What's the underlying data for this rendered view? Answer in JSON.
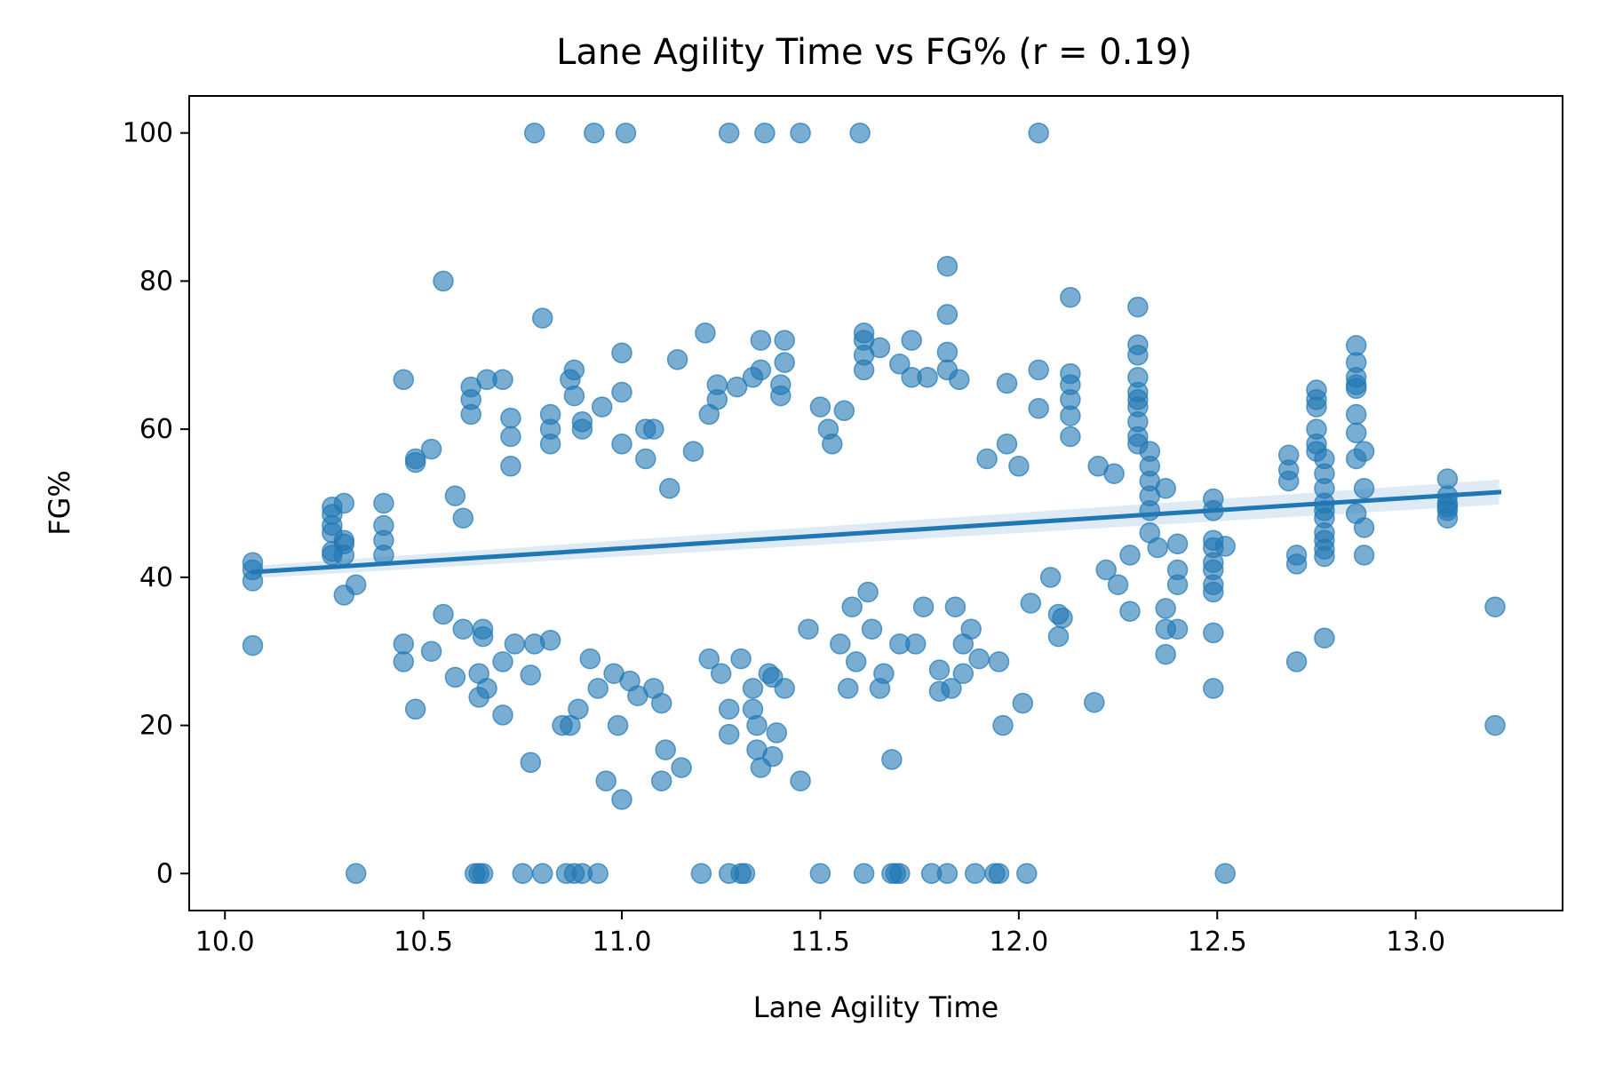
{
  "chart_data": {
    "type": "scatter",
    "title": "Lane Agility Time vs FG% (r = 0.19)",
    "xlabel": "Lane Agility Time",
    "ylabel": "FG%",
    "xlim": [
      9.91,
      13.37
    ],
    "ylim": [
      -5,
      105
    ],
    "xticks": [
      10.0,
      10.5,
      11.0,
      11.5,
      12.0,
      12.5,
      13.0
    ],
    "xtick_labels": [
      "10.0",
      "10.5",
      "11.0",
      "11.5",
      "12.0",
      "12.5",
      "13.0"
    ],
    "yticks": [
      0,
      20,
      40,
      60,
      80,
      100
    ],
    "ytick_labels": [
      "0",
      "20",
      "40",
      "60",
      "80",
      "100"
    ],
    "grid": false,
    "legend": "none",
    "point_color": "#1f77b4",
    "regression": {
      "x": [
        10.07,
        13.21
      ],
      "y": [
        40.7,
        51.5
      ]
    },
    "points": [
      [
        10.07,
        42.0
      ],
      [
        10.07,
        41.0
      ],
      [
        10.07,
        39.5
      ],
      [
        10.07,
        30.8
      ],
      [
        10.27,
        49.5
      ],
      [
        10.27,
        48.5
      ],
      [
        10.27,
        47.0
      ],
      [
        10.27,
        46.0
      ],
      [
        10.27,
        43.5
      ],
      [
        10.27,
        43.0
      ],
      [
        10.3,
        50.0
      ],
      [
        10.3,
        45.0
      ],
      [
        10.3,
        44.5
      ],
      [
        10.3,
        43.0
      ],
      [
        10.3,
        37.6
      ],
      [
        10.33,
        39.0
      ],
      [
        10.33,
        0.0
      ],
      [
        10.4,
        50.0
      ],
      [
        10.4,
        47.0
      ],
      [
        10.4,
        45.0
      ],
      [
        10.4,
        43.0
      ],
      [
        10.45,
        66.7
      ],
      [
        10.45,
        31.0
      ],
      [
        10.45,
        28.6
      ],
      [
        10.48,
        22.2
      ],
      [
        10.48,
        56.0
      ],
      [
        10.48,
        55.5
      ],
      [
        10.52,
        57.3
      ],
      [
        10.52,
        30.0
      ],
      [
        10.55,
        80.0
      ],
      [
        10.55,
        35.0
      ],
      [
        10.58,
        51.0
      ],
      [
        10.58,
        26.5
      ],
      [
        10.6,
        48.0
      ],
      [
        10.6,
        33.0
      ],
      [
        10.62,
        65.7
      ],
      [
        10.62,
        64.0
      ],
      [
        10.62,
        62.0
      ],
      [
        10.63,
        0.0
      ],
      [
        10.64,
        0.0
      ],
      [
        10.65,
        0.0
      ],
      [
        10.64,
        27.0
      ],
      [
        10.64,
        23.8
      ],
      [
        10.65,
        33.0
      ],
      [
        10.65,
        32.0
      ],
      [
        10.66,
        66.7
      ],
      [
        10.66,
        25.0
      ],
      [
        10.7,
        66.7
      ],
      [
        10.7,
        28.6
      ],
      [
        10.7,
        21.4
      ],
      [
        10.72,
        61.5
      ],
      [
        10.72,
        59.0
      ],
      [
        10.72,
        55.0
      ],
      [
        10.73,
        31.0
      ],
      [
        10.75,
        0.0
      ],
      [
        10.77,
        15.0
      ],
      [
        10.77,
        26.8
      ],
      [
        10.78,
        100.0
      ],
      [
        10.78,
        31.0
      ],
      [
        10.8,
        75.0
      ],
      [
        10.8,
        0.0
      ],
      [
        10.82,
        62.0
      ],
      [
        10.82,
        60.0
      ],
      [
        10.82,
        58.0
      ],
      [
        10.82,
        31.5
      ],
      [
        10.85,
        20.0
      ],
      [
        10.86,
        0.0
      ],
      [
        10.87,
        66.7
      ],
      [
        10.87,
        20.0
      ],
      [
        10.88,
        68.0
      ],
      [
        10.88,
        64.5
      ],
      [
        10.88,
        0.0
      ],
      [
        10.89,
        22.2
      ],
      [
        10.9,
        61.0
      ],
      [
        10.9,
        60.0
      ],
      [
        10.9,
        0.0
      ],
      [
        10.92,
        29.0
      ],
      [
        10.93,
        100.0
      ],
      [
        10.94,
        0.0
      ],
      [
        10.94,
        25.0
      ],
      [
        10.95,
        63.0
      ],
      [
        10.96,
        12.5
      ],
      [
        10.98,
        27.0
      ],
      [
        10.99,
        20.0
      ],
      [
        11.0,
        65.0
      ],
      [
        11.0,
        10.0
      ],
      [
        11.0,
        70.3
      ],
      [
        11.0,
        58.0
      ],
      [
        11.01,
        100.0
      ],
      [
        11.02,
        26.0
      ],
      [
        11.04,
        24.0
      ],
      [
        11.06,
        60.0
      ],
      [
        11.06,
        56.0
      ],
      [
        11.08,
        60.0
      ],
      [
        11.08,
        25.0
      ],
      [
        11.1,
        12.5
      ],
      [
        11.1,
        23.0
      ],
      [
        11.11,
        16.7
      ],
      [
        11.12,
        52.0
      ],
      [
        11.14,
        69.4
      ],
      [
        11.15,
        14.3
      ],
      [
        11.18,
        57.0
      ],
      [
        11.2,
        0.0
      ],
      [
        11.21,
        73.0
      ],
      [
        11.22,
        62.0
      ],
      [
        11.22,
        29.0
      ],
      [
        11.24,
        66.0
      ],
      [
        11.24,
        64.0
      ],
      [
        11.25,
        27.0
      ],
      [
        11.27,
        100.0
      ],
      [
        11.27,
        0.0
      ],
      [
        11.27,
        22.2
      ],
      [
        11.27,
        18.8
      ],
      [
        11.29,
        65.7
      ],
      [
        11.3,
        0.0
      ],
      [
        11.31,
        0.0
      ],
      [
        11.3,
        29.0
      ],
      [
        11.33,
        67.0
      ],
      [
        11.33,
        25.0
      ],
      [
        11.33,
        22.2
      ],
      [
        11.34,
        20.0
      ],
      [
        11.34,
        16.7
      ],
      [
        11.35,
        72.0
      ],
      [
        11.35,
        68.0
      ],
      [
        11.35,
        14.3
      ],
      [
        11.36,
        100.0
      ],
      [
        11.37,
        27.0
      ],
      [
        11.38,
        15.8
      ],
      [
        11.38,
        26.5
      ],
      [
        11.39,
        19.0
      ],
      [
        11.4,
        66.0
      ],
      [
        11.4,
        64.5
      ],
      [
        11.41,
        72.0
      ],
      [
        11.41,
        69.0
      ],
      [
        11.41,
        25.0
      ],
      [
        11.45,
        100.0
      ],
      [
        11.45,
        12.5
      ],
      [
        11.47,
        33.0
      ],
      [
        11.5,
        63.0
      ],
      [
        11.5,
        0.0
      ],
      [
        11.52,
        60.0
      ],
      [
        11.53,
        58.0
      ],
      [
        11.55,
        31.0
      ],
      [
        11.56,
        62.5
      ],
      [
        11.57,
        25.0
      ],
      [
        11.58,
        36.0
      ],
      [
        11.59,
        28.6
      ],
      [
        11.6,
        100.0
      ],
      [
        11.61,
        0.0
      ],
      [
        11.61,
        73.0
      ],
      [
        11.61,
        72.0
      ],
      [
        11.61,
        70.0
      ],
      [
        11.61,
        68.0
      ],
      [
        11.62,
        38.0
      ],
      [
        11.63,
        33.0
      ],
      [
        11.65,
        71.0
      ],
      [
        11.65,
        25.0
      ],
      [
        11.66,
        27.0
      ],
      [
        11.68,
        15.4
      ],
      [
        11.68,
        0.0
      ],
      [
        11.69,
        0.0
      ],
      [
        11.7,
        0.0
      ],
      [
        11.7,
        68.8
      ],
      [
        11.7,
        31.0
      ],
      [
        11.73,
        72.0
      ],
      [
        11.73,
        67.0
      ],
      [
        11.74,
        31.0
      ],
      [
        11.76,
        36.0
      ],
      [
        11.77,
        67.0
      ],
      [
        11.78,
        0.0
      ],
      [
        11.8,
        27.5
      ],
      [
        11.8,
        24.6
      ],
      [
        11.82,
        82.0
      ],
      [
        11.82,
        75.5
      ],
      [
        11.82,
        70.4
      ],
      [
        11.82,
        68.0
      ],
      [
        11.82,
        0.0
      ],
      [
        11.83,
        25.0
      ],
      [
        11.84,
        36.0
      ],
      [
        11.85,
        66.7
      ],
      [
        11.86,
        31.0
      ],
      [
        11.86,
        27.0
      ],
      [
        11.88,
        33.0
      ],
      [
        11.89,
        0.0
      ],
      [
        11.9,
        29.0
      ],
      [
        11.92,
        56.0
      ],
      [
        11.94,
        0.0
      ],
      [
        11.95,
        28.6
      ],
      [
        11.95,
        0.0
      ],
      [
        11.96,
        20.0
      ],
      [
        11.97,
        66.2
      ],
      [
        11.97,
        58.0
      ],
      [
        12.0,
        55.0
      ],
      [
        12.01,
        23.0
      ],
      [
        12.02,
        0.0
      ],
      [
        12.03,
        36.5
      ],
      [
        12.05,
        100.0
      ],
      [
        12.05,
        68.0
      ],
      [
        12.05,
        62.8
      ],
      [
        12.08,
        40.0
      ],
      [
        12.1,
        35.0
      ],
      [
        12.1,
        32.0
      ],
      [
        12.11,
        34.5
      ],
      [
        12.13,
        77.8
      ],
      [
        12.13,
        67.5
      ],
      [
        12.13,
        66.0
      ],
      [
        12.13,
        64.0
      ],
      [
        12.13,
        61.8
      ],
      [
        12.13,
        59.0
      ],
      [
        12.19,
        23.1
      ],
      [
        12.2,
        55.0
      ],
      [
        12.22,
        41.0
      ],
      [
        12.24,
        54.0
      ],
      [
        12.25,
        39.0
      ],
      [
        12.28,
        35.4
      ],
      [
        12.28,
        43.0
      ],
      [
        12.3,
        76.5
      ],
      [
        12.3,
        71.4
      ],
      [
        12.3,
        70.0
      ],
      [
        12.3,
        67.0
      ],
      [
        12.3,
        65.0
      ],
      [
        12.3,
        64.0
      ],
      [
        12.3,
        63.0
      ],
      [
        12.3,
        61.0
      ],
      [
        12.3,
        59.0
      ],
      [
        12.3,
        58.0
      ],
      [
        12.33,
        57.0
      ],
      [
        12.33,
        55.0
      ],
      [
        12.33,
        53.0
      ],
      [
        12.33,
        51.0
      ],
      [
        12.33,
        49.0
      ],
      [
        12.33,
        46.0
      ],
      [
        12.35,
        44.0
      ],
      [
        12.37,
        52.0
      ],
      [
        12.37,
        35.8
      ],
      [
        12.37,
        33.0
      ],
      [
        12.37,
        29.6
      ],
      [
        12.4,
        44.5
      ],
      [
        12.4,
        41.0
      ],
      [
        12.4,
        39.0
      ],
      [
        12.4,
        33.0
      ],
      [
        12.49,
        50.6
      ],
      [
        12.49,
        49.0
      ],
      [
        12.49,
        45.0
      ],
      [
        12.49,
        44.0
      ],
      [
        12.49,
        42.0
      ],
      [
        12.49,
        41.0
      ],
      [
        12.49,
        39.0
      ],
      [
        12.49,
        38.0
      ],
      [
        12.49,
        32.5
      ],
      [
        12.49,
        25.0
      ],
      [
        12.52,
        44.2
      ],
      [
        12.52,
        0.0
      ],
      [
        12.68,
        56.5
      ],
      [
        12.68,
        54.5
      ],
      [
        12.68,
        53.0
      ],
      [
        12.7,
        43.0
      ],
      [
        12.7,
        41.8
      ],
      [
        12.7,
        28.6
      ],
      [
        12.75,
        65.3
      ],
      [
        12.75,
        64.0
      ],
      [
        12.75,
        63.0
      ],
      [
        12.75,
        60.0
      ],
      [
        12.75,
        58.0
      ],
      [
        12.75,
        57.0
      ],
      [
        12.77,
        56.0
      ],
      [
        12.77,
        54.0
      ],
      [
        12.77,
        52.0
      ],
      [
        12.77,
        50.0
      ],
      [
        12.77,
        49.0
      ],
      [
        12.77,
        48.0
      ],
      [
        12.77,
        46.0
      ],
      [
        12.77,
        45.0
      ],
      [
        12.77,
        43.8
      ],
      [
        12.77,
        42.8
      ],
      [
        12.77,
        31.8
      ],
      [
        12.85,
        71.3
      ],
      [
        12.85,
        69.0
      ],
      [
        12.85,
        67.0
      ],
      [
        12.85,
        66.0
      ],
      [
        12.85,
        65.5
      ],
      [
        12.85,
        62.0
      ],
      [
        12.85,
        59.5
      ],
      [
        12.85,
        56.0
      ],
      [
        12.85,
        48.6
      ],
      [
        12.87,
        57.0
      ],
      [
        12.87,
        52.0
      ],
      [
        12.87,
        46.7
      ],
      [
        12.87,
        43.0
      ],
      [
        13.08,
        53.3
      ],
      [
        13.08,
        51.0
      ],
      [
        13.08,
        50.0
      ],
      [
        13.08,
        49.5
      ],
      [
        13.08,
        49.0
      ],
      [
        13.08,
        48.0
      ],
      [
        13.2,
        36.0
      ],
      [
        13.2,
        20.0
      ]
    ]
  }
}
